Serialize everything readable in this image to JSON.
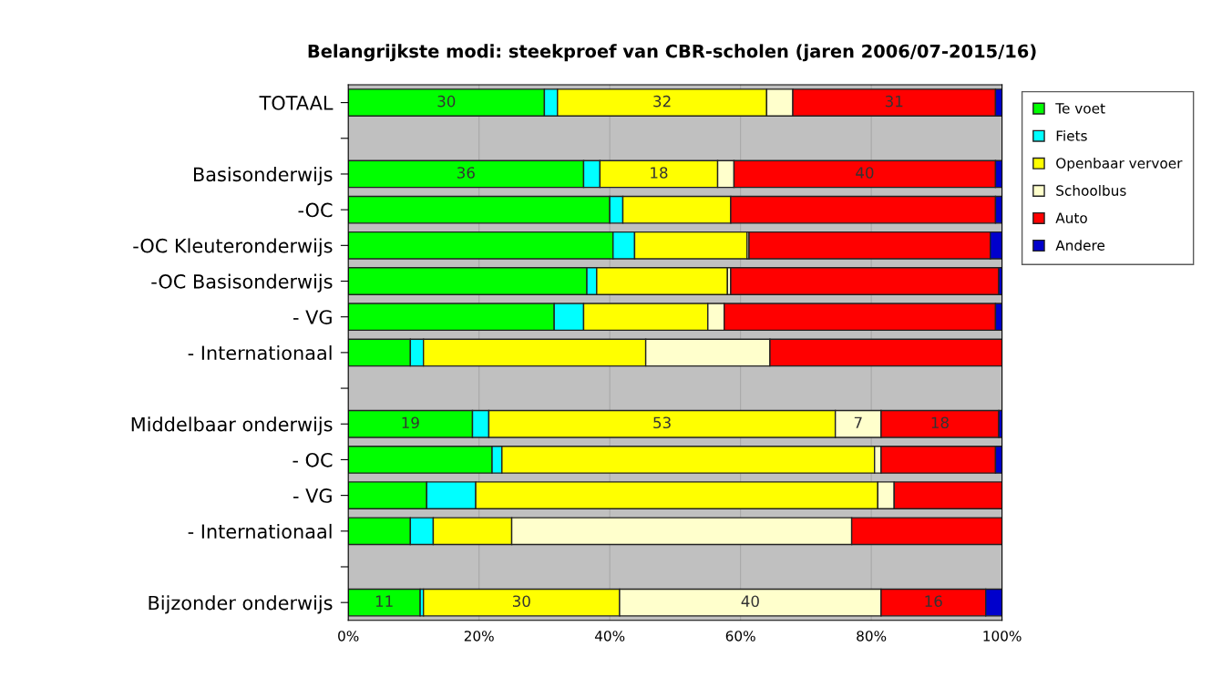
{
  "chart_data": {
    "type": "bar",
    "orientation": "horizontal",
    "stacked": true,
    "title": "Belangrijkste modi: steekproef van CBR-scholen (jaren 2006/07-2015/16)",
    "categories": [
      "TOTAAL",
      null,
      "Basisonderwijs",
      "-OC",
      "-OC Kleuteronderwijs",
      "-OC Basisonderwijs",
      "- VG",
      "- Internationaal",
      null,
      "Middelbaar onderwijs",
      "- OC",
      "- VG",
      "- Internationaal",
      null,
      "Bijzonder onderwijs"
    ],
    "series": [
      {
        "name": "Te voet",
        "color": "#00ff00",
        "values": [
          30,
          null,
          36,
          40,
          40.5,
          36.5,
          31.5,
          9.5,
          null,
          19,
          22,
          12,
          9.5,
          null,
          11
        ],
        "value_labels": [
          "30",
          null,
          "36",
          null,
          null,
          null,
          null,
          null,
          null,
          "19",
          null,
          null,
          null,
          null,
          "11"
        ]
      },
      {
        "name": "Fiets",
        "color": "#00ffff",
        "values": [
          2,
          null,
          2.5,
          2,
          3.3,
          1.5,
          4.5,
          2,
          null,
          2.5,
          1.5,
          7.5,
          3.5,
          null,
          0.5
        ]
      },
      {
        "name": "Openbaar vervoer",
        "color": "#ffff00",
        "values": [
          32,
          null,
          18,
          16.5,
          17.2,
          20,
          19,
          34,
          null,
          53,
          57,
          61.5,
          12,
          null,
          30
        ],
        "value_labels": [
          "32",
          null,
          "18",
          null,
          null,
          null,
          null,
          null,
          null,
          "53",
          null,
          null,
          null,
          null,
          "30"
        ]
      },
      {
        "name": "Schoolbus",
        "color": "#ffffcc",
        "values": [
          4,
          null,
          2.5,
          0,
          0.3,
          0.5,
          2.5,
          19,
          null,
          7,
          1,
          2.5,
          52,
          null,
          40
        ],
        "value_labels": [
          null,
          null,
          null,
          null,
          null,
          null,
          null,
          null,
          null,
          "7",
          null,
          null,
          null,
          null,
          "40"
        ]
      },
      {
        "name": "Auto",
        "color": "#ff0000",
        "values": [
          31,
          null,
          40,
          40.5,
          36.9,
          41,
          41.5,
          35.5,
          null,
          18,
          17.5,
          16.5,
          23,
          null,
          16
        ],
        "value_labels": [
          "31",
          null,
          "40",
          null,
          null,
          null,
          null,
          null,
          null,
          "18",
          null,
          null,
          null,
          null,
          "16"
        ]
      },
      {
        "name": "Andere",
        "color": "#0000cc",
        "values": [
          1,
          null,
          1,
          1,
          1.8,
          0.5,
          1,
          0,
          null,
          0.5,
          1,
          0,
          0,
          null,
          2.5
        ]
      }
    ],
    "xlim": [
      0,
      100
    ],
    "xticks": [
      {
        "value": 0,
        "label": "0%"
      },
      {
        "value": 20,
        "label": "20%"
      },
      {
        "value": 40,
        "label": "40%"
      },
      {
        "value": 60,
        "label": "60%"
      },
      {
        "value": 80,
        "label": "80%"
      },
      {
        "value": 100,
        "label": "100%"
      }
    ],
    "grid": "x",
    "legend": "top right"
  }
}
